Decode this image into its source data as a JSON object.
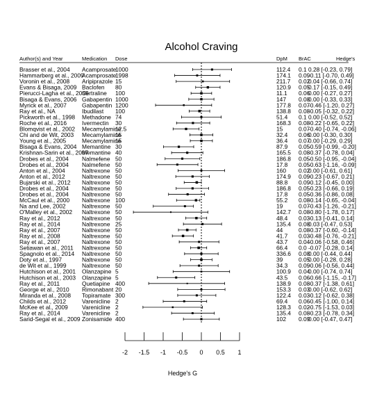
{
  "chart_data": {
    "type": "forest",
    "title": "Alcohol Craving",
    "xlabel": "Hedge's G",
    "xlim": [
      -2,
      1
    ],
    "x_ticks": [
      "-2",
      "-1.5",
      "-1",
      "-0.5",
      "0",
      "0.5",
      "1"
    ],
    "x_tick_values": [
      -2,
      -1.5,
      -1,
      -0.5,
      0,
      0.5,
      1
    ],
    "headers": {
      "study": "Author(s) and Year",
      "medication": "Medication",
      "dose": "Dose",
      "dpm": "DpM",
      "brac": "BrAC",
      "g": "Hedge's"
    },
    "reference_line": 0,
    "studies": [
      {
        "study": "Brasser et al., 2004",
        "medication": "Acamprosate",
        "dose": "1000",
        "dpm": "112.4",
        "brac": "0.1",
        "g": 0.28,
        "lo": -0.23,
        "hi": 0.79,
        "g_text": "0.28 [-0.23,  0.79]"
      },
      {
        "study": "Hammarberg et al., 2009",
        "medication": "Acamprosate",
        "dose": "1998",
        "dpm": "174.1",
        "brac": "0.09",
        "g": -0.11,
        "lo": -0.7,
        "hi": 0.49,
        "g_text": "-0.11 [-0.70,  0.49]"
      },
      {
        "study": "Voronin et al., 2008",
        "medication": "Aripiprazole",
        "dose": "15",
        "dpm": "211.7",
        "brac": "0.02",
        "g": 0.04,
        "lo": -0.66,
        "hi": 0.74,
        "g_text": "0.04 [-0.66,  0.74]"
      },
      {
        "study": "Evans & Bisaga, 2009",
        "medication": "Baclofen",
        "dose": "80",
        "dpm": "120.9",
        "brac": "0.05",
        "g": 0.17,
        "lo": -0.15,
        "hi": 0.49,
        "g_text": "0.17 [-0.15,  0.49]"
      },
      {
        "study": "Pierucci-Lagha et al., 2005",
        "medication": "Sertraline",
        "dose": "100",
        "dpm": "11.1",
        "brac": "0.06",
        "g": 0.0,
        "lo": -0.27,
        "hi": 0.27,
        "g_text": "0.00 [-0.27,  0.27]"
      },
      {
        "study": "Bisaga & Evans, 2006",
        "medication": "Gabapentin",
        "dose": "1000",
        "dpm": "147",
        "brac": "0.08",
        "g": 0.0,
        "lo": -0.33,
        "hi": 0.33,
        "g_text": "0.00 [-0.33,  0.33]"
      },
      {
        "study": "Myrick et al., 2007",
        "medication": "Gabapentin",
        "dose": "1200",
        "dpm": "177.8",
        "brac": "0.07",
        "g": -0.46,
        "lo": -1.2,
        "hi": 0.27,
        "g_text": "-0.46 [-1.20,  0.27]"
      },
      {
        "study": "Ray et al., NA",
        "medication": "Ibudilast",
        "dose": "100",
        "dpm": "138.8",
        "brac": "0.08",
        "g": -0.05,
        "lo": -0.32,
        "hi": 0.22,
        "g_text": "-0.05 [-0.32,  0.22]"
      },
      {
        "study": "Pickworth et al., 1998",
        "medication": "Methadone",
        "dose": "74",
        "dpm": "51.4",
        "brac": "0.1",
        "g": 0.0,
        "lo": -0.52,
        "hi": 0.52,
        "g_text": "0.00 [-0.52,  0.52]"
      },
      {
        "study": "Roche et al., 2016",
        "medication": "Ivermectin",
        "dose": "30",
        "dpm": "168.3",
        "brac": "0.08",
        "g": -0.22,
        "lo": -0.65,
        "hi": 0.22,
        "g_text": "-0.22 [-0.65,  0.22]"
      },
      {
        "study": "Blomqvist et al., 2002",
        "medication": "Mecamylamine",
        "dose": "12.5",
        "dpm": "15",
        "brac": "0.07",
        "g": -0.4,
        "lo": -0.74,
        "hi": -0.06,
        "g_text": "-0.40 [-0.74, -0.06]"
      },
      {
        "study": "Chi and de Wit, 2003",
        "medication": "Mecamylamine",
        "dose": "15",
        "dpm": "32.4",
        "brac": "0.06",
        "g": 0.0,
        "lo": -0.3,
        "hi": 0.3,
        "g_text": "0.00 [-0.30,  0.30]"
      },
      {
        "study": "Young et al., 2005",
        "medication": "Mecamylamine",
        "dose": "15",
        "dpm": "36.4",
        "brac": "0.07",
        "g": 0.0,
        "lo": -0.29,
        "hi": 0.29,
        "g_text": "0.00 [-0.29,  0.29]"
      },
      {
        "study": "Bisaga & Evans, 2004",
        "medication": "Memantine",
        "dose": "30",
        "dpm": "87.9",
        "brac": "0.05",
        "g": -0.59,
        "lo": -0.99,
        "hi": -0.2,
        "g_text": "-0.59 [-0.99, -0.20]"
      },
      {
        "study": "Krishnan-Sarin et al., 2007",
        "medication": "Memantine",
        "dose": "40",
        "dpm": "165.5",
        "brac": "0.08",
        "g": -0.37,
        "lo": -0.78,
        "hi": 0.04,
        "g_text": "-0.37 [-0.78,  0.04]"
      },
      {
        "study": "Drobes et al., 2004",
        "medication": "Nalmefene",
        "dose": "50",
        "dpm": "186.8",
        "brac": "0.05",
        "g": -0.5,
        "lo": -0.95,
        "hi": -0.04,
        "g_text": "-0.50 [-0.95, -0.04]"
      },
      {
        "study": "Drobes et al., 2004",
        "medication": "Nalmefene",
        "dose": "50",
        "dpm": "17.8",
        "brac": "0.05",
        "g": -0.63,
        "lo": -1.16,
        "hi": -0.09,
        "g_text": "-0.63 [-1.16, -0.09]"
      },
      {
        "study": "Anton et al., 2004",
        "medication": "Naltrexone",
        "dose": "50",
        "dpm": "160",
        "brac": "0.02",
        "g": 0.0,
        "lo": -0.61,
        "hi": 0.61,
        "g_text": "0.00 [-0.61,  0.61]"
      },
      {
        "study": "Anton et al., 2012",
        "medication": "Naltrexone",
        "dose": "50",
        "dpm": "174.9",
        "brac": "0.09",
        "g": -0.23,
        "lo": -0.67,
        "hi": 0.21,
        "g_text": "-0.23 [-0.67,  0.21]"
      },
      {
        "study": "Bujarski et al., 2012",
        "medication": "Naltrexone",
        "dose": "50",
        "dpm": "88.8",
        "brac": "0.09",
        "g": -0.12,
        "lo": -0.45,
        "hi": 0.0,
        "g_text": "-0.12 [-0.45,  0.00]"
      },
      {
        "study": "Drobes et al., 2004",
        "medication": "Naltrexone",
        "dose": "50",
        "dpm": "186.8",
        "brac": "0.05",
        "g": -0.23,
        "lo": -0.66,
        "hi": 0.19,
        "g_text": "-0.23 [-0.66,  0.19]"
      },
      {
        "study": "Drobes et al., 2004",
        "medication": "Naltrexone",
        "dose": "50",
        "dpm": "17.8",
        "brac": "0.05",
        "g": -0.36,
        "lo": -0.86,
        "hi": 0.08,
        "g_text": "-0.36 [-0.86,  0.08]"
      },
      {
        "study": "McCaul et al., 2000",
        "medication": "Naltrexone",
        "dose": "100",
        "dpm": "55.2",
        "brac": "0.08",
        "g": -0.14,
        "lo": -0.65,
        "hi": -0.04,
        "g_text": "-0.14 [-0.65, -0.04]"
      },
      {
        "study": "Na and Lee, 2002",
        "medication": "Naltrexone",
        "dose": "50",
        "dpm": "19",
        "brac": "0.07",
        "g": -0.43,
        "lo": -1.26,
        "hi": -0.21,
        "g_text": "-0.43 [-1.26, -0.21]"
      },
      {
        "study": "O'Malley et al., 2002",
        "medication": "Naltrexone",
        "dose": "50",
        "dpm": "142.7",
        "brac": "0.08",
        "g": -0.8,
        "lo": -1.78,
        "hi": 0.17,
        "g_text": "-0.80 [-1.78,  0.17]"
      },
      {
        "study": "Ray et al., 2012",
        "medication": "Naltrexone",
        "dose": "50",
        "dpm": "48.4",
        "brac": "0.03",
        "g": -0.13,
        "lo": -0.41,
        "hi": 0.14,
        "g_text": "-0.13 [-0.41,  0.14]"
      },
      {
        "study": "Ray et al., 2014",
        "medication": "Naltrexone",
        "dose": "25",
        "dpm": "135.4",
        "brac": "0.08",
        "g": 0.03,
        "lo": -0.47,
        "hi": 0.53,
        "g_text": "0.03 [-0.47,  0.53]"
      },
      {
        "study": "Ray et al., 2007",
        "medication": "Naltrexone",
        "dose": "50",
        "dpm": "44",
        "brac": "0.08",
        "g": -0.37,
        "lo": -0.6,
        "hi": -0.14,
        "g_text": "-0.37 [-0.60, -0.14]"
      },
      {
        "study": "Ray et al., 2008",
        "medication": "Naltrexone",
        "dose": "50",
        "dpm": "41.7",
        "brac": "0.03",
        "g": -0.48,
        "lo": -0.76,
        "hi": -0.21,
        "g_text": "-0.48 [-0.76, -0.21]"
      },
      {
        "study": "Ray et al., 2007",
        "medication": "Naltrexone",
        "dose": "50",
        "dpm": "43.7",
        "brac": "0.04",
        "g": -0.06,
        "lo": -0.58,
        "hi": 0.46,
        "g_text": "-0.06 [-0.58,  0.46]"
      },
      {
        "study": "Setiawan et al., 2011",
        "medication": "Naltrexone",
        "dose": "50",
        "dpm": "66.4",
        "brac": "0.0",
        "g": -0.07,
        "lo": -0.28,
        "hi": 0.14,
        "g_text": "-0.07 [-0.28,  0.14]"
      },
      {
        "study": "Spagnolo et al., 2014",
        "medication": "Naltrexone",
        "dose": "50",
        "dpm": "336.6",
        "brac": "0.08",
        "g": 0.0,
        "lo": -0.44,
        "hi": 0.44,
        "g_text": "0.00 [-0.44,  0.44]"
      },
      {
        "study": "Doty et al., 1997",
        "medication": "Naltrexone",
        "dose": "50",
        "dpm": "39",
        "brac": "0.05",
        "g": 0.0,
        "lo": -0.28,
        "hi": 0.28,
        "g_text": "0.00 [-0.28,  0.28]"
      },
      {
        "study": "de Wit et al., 1999",
        "medication": "Naltrexone",
        "dose": "50",
        "dpm": "34.3",
        "brac": "0.09",
        "g": -0.06,
        "lo": -0.56,
        "hi": 0.44,
        "g_text": "-0.06 [-0.56,  0.44]"
      },
      {
        "study": "Hutchison et al., 2001",
        "medication": "Olanzapine",
        "dose": "5",
        "dpm": "100.9",
        "brac": "0.04",
        "g": 0.0,
        "lo": -0.74,
        "hi": 0.74,
        "g_text": "0.00 [-0.74,  0.74]"
      },
      {
        "study": "Hutchison et al., 2003",
        "medication": "Olanzapine",
        "dose": "5",
        "dpm": "43.5",
        "brac": "0.06",
        "g": -0.66,
        "lo": -1.15,
        "hi": -0.17,
        "g_text": "-0.66 [-1.15, -0.17]"
      },
      {
        "study": "Ray et al., 2011",
        "medication": "Quetiapine",
        "dose": "400",
        "dpm": "138.9",
        "brac": "0.08",
        "g": -0.37,
        "lo": -1.38,
        "hi": 0.61,
        "g_text": "-0.37 [-1.38,  0.61]"
      },
      {
        "study": "George et al., 2010",
        "medication": "Rimonabant",
        "dose": "20",
        "dpm": "153.3",
        "brac": "0.03",
        "g": 0.0,
        "lo": -0.62,
        "hi": 0.62,
        "g_text": "0.00 [-0.62,  0.62]"
      },
      {
        "study": "Miranda et al., 2008",
        "medication": "Topiramate",
        "dose": "300",
        "dpm": "122.4",
        "brac": "0.03",
        "g": -0.12,
        "lo": -0.62,
        "hi": 0.38,
        "g_text": "-0.12 [-0.62,  0.38]"
      },
      {
        "study": "Childs et al., 2012",
        "medication": "Varenicline",
        "dose": "2",
        "dpm": "69.4",
        "brac": "0.06",
        "g": -0.45,
        "lo": -1.0,
        "hi": 0.14,
        "g_text": "-0.45 [-1.00,  0.14]"
      },
      {
        "study": "McKee et al., 2009",
        "medication": "Varenicline",
        "dose": "2",
        "dpm": "128.3",
        "brac": "0.02",
        "g": -0.75,
        "lo": -1.53,
        "hi": 0.03,
        "g_text": "-0.75 [-1.53,  0.03]"
      },
      {
        "study": "Ray et al., 2014",
        "medication": "Varenicline",
        "dose": "2",
        "dpm": "135.4",
        "brac": "0.08",
        "g": -0.23,
        "lo": -0.78,
        "hi": 0.34,
        "g_text": "-0.23 [-0.78,  0.34]"
      },
      {
        "study": "Sarid-Segal et al., 2009",
        "medication": "Zonisamide",
        "dose": "400",
        "dpm": "102",
        "brac": "0.09",
        "g": 0.0,
        "lo": -0.47,
        "hi": 0.47,
        "g_text": "0.00 [-0.47,  0.47]"
      }
    ]
  }
}
